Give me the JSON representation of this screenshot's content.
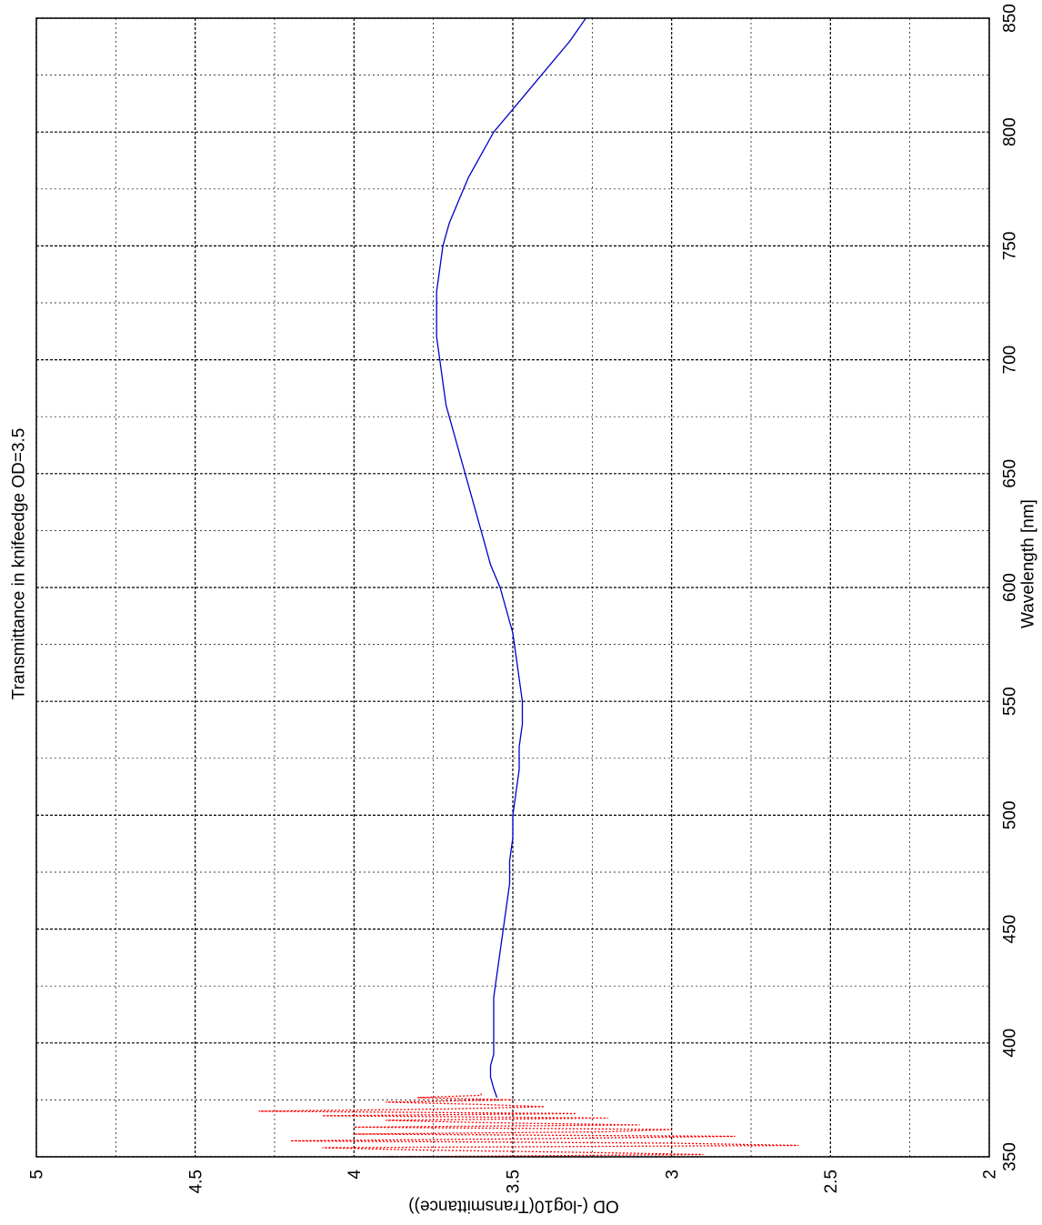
{
  "chart_data": {
    "type": "line",
    "orientation": "rotated-90",
    "title": "Transmittance in knifeedge OD=3.5",
    "xlabel": "Wavelength [nm]",
    "ylabel": "OD (-log10(Transmittance))",
    "xlim": [
      350,
      850
    ],
    "ylim": [
      2,
      5
    ],
    "x_ticks": [
      "350",
      "400",
      "450",
      "500",
      "550",
      "600",
      "650",
      "700",
      "750",
      "800",
      "850"
    ],
    "y_ticks": [
      "2",
      "2.5",
      "3",
      "3.5",
      "4",
      "4.5",
      "5"
    ],
    "grid": true,
    "colors": {
      "measured": "#0000cc",
      "noise": "#ff0000",
      "axes": "#000000"
    },
    "series": [
      {
        "style": "solid",
        "color": "#0000cc",
        "x": [
          376,
          380,
          385,
          390,
          395,
          400,
          410,
          420,
          430,
          440,
          450,
          460,
          470,
          480,
          490,
          500,
          510,
          520,
          530,
          540,
          550,
          560,
          570,
          580,
          590,
          600,
          610,
          620,
          630,
          640,
          650,
          660,
          670,
          680,
          690,
          700,
          710,
          720,
          730,
          740,
          750,
          760,
          770,
          780,
          790,
          800,
          810,
          820,
          830,
          840,
          850
        ],
        "y": [
          3.55,
          3.56,
          3.57,
          3.57,
          3.56,
          3.56,
          3.56,
          3.56,
          3.55,
          3.54,
          3.53,
          3.52,
          3.51,
          3.51,
          3.5,
          3.5,
          3.49,
          3.48,
          3.48,
          3.47,
          3.47,
          3.48,
          3.49,
          3.5,
          3.52,
          3.54,
          3.57,
          3.59,
          3.61,
          3.63,
          3.65,
          3.67,
          3.69,
          3.71,
          3.72,
          3.73,
          3.74,
          3.74,
          3.74,
          3.73,
          3.72,
          3.7,
          3.67,
          3.64,
          3.6,
          3.56,
          3.5,
          3.44,
          3.38,
          3.32,
          3.27
        ]
      },
      {
        "style": "dotted",
        "color": "#ff0000",
        "x": [
          350,
          351,
          352,
          353,
          354,
          355,
          356,
          357,
          358,
          359,
          360,
          361,
          362,
          363,
          364,
          365,
          366,
          367,
          368,
          369,
          370,
          371,
          372,
          373,
          374,
          375,
          376,
          377,
          378
        ],
        "y": [
          3.9,
          2.9,
          3.3,
          3.8,
          4.1,
          2.6,
          3.0,
          4.2,
          3.4,
          2.8,
          4.0,
          3.2,
          3.0,
          4.0,
          3.1,
          3.6,
          3.9,
          3.2,
          4.1,
          3.3,
          4.3,
          3.7,
          3.4,
          3.6,
          3.9,
          3.5,
          3.8,
          3.6,
          3.6
        ]
      }
    ]
  }
}
